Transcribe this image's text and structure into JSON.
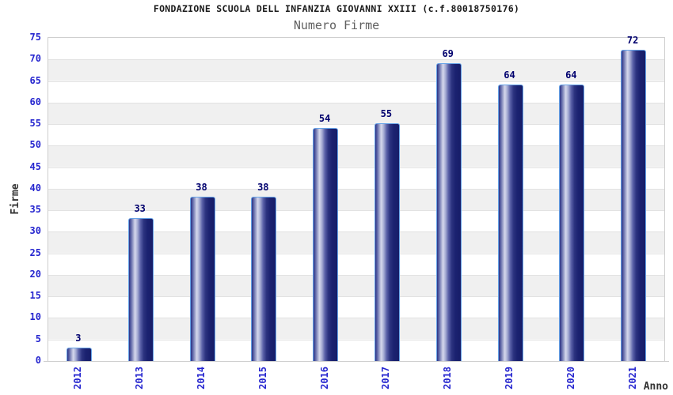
{
  "chart_data": {
    "type": "bar",
    "title": "FONDAZIONE SCUOLA DELL INFANZIA GIOVANNI XXIII (c.f.80018750176)",
    "subtitle": "Numero Firme",
    "xlabel": "Anno",
    "ylabel": "Firme",
    "categories": [
      "2012",
      "2013",
      "2014",
      "2015",
      "2016",
      "2017",
      "2018",
      "2019",
      "2020",
      "2021"
    ],
    "values": [
      3,
      33,
      38,
      38,
      54,
      55,
      69,
      64,
      64,
      72
    ],
    "ylim": [
      0,
      75
    ],
    "ytick_step": 5,
    "yticks": [
      0,
      5,
      10,
      15,
      20,
      25,
      30,
      35,
      40,
      45,
      50,
      55,
      60,
      65,
      70,
      75
    ],
    "grid": true,
    "band_stripes": true,
    "legend_position": "none",
    "colors": {
      "band": "#f0f0f0",
      "plot_border": "#cfcfcf",
      "gridline": "#e2e2e2",
      "bar_dark": "#1b2270",
      "bar_highlight": "#d6d9ec",
      "bar_border": "#66a3e8",
      "tick_label": "#2626cf",
      "value_label": "#00006e",
      "title": "#1a1a1a",
      "subtitle": "#606060",
      "axis_title": "#333333",
      "background": "#ffffff"
    }
  }
}
